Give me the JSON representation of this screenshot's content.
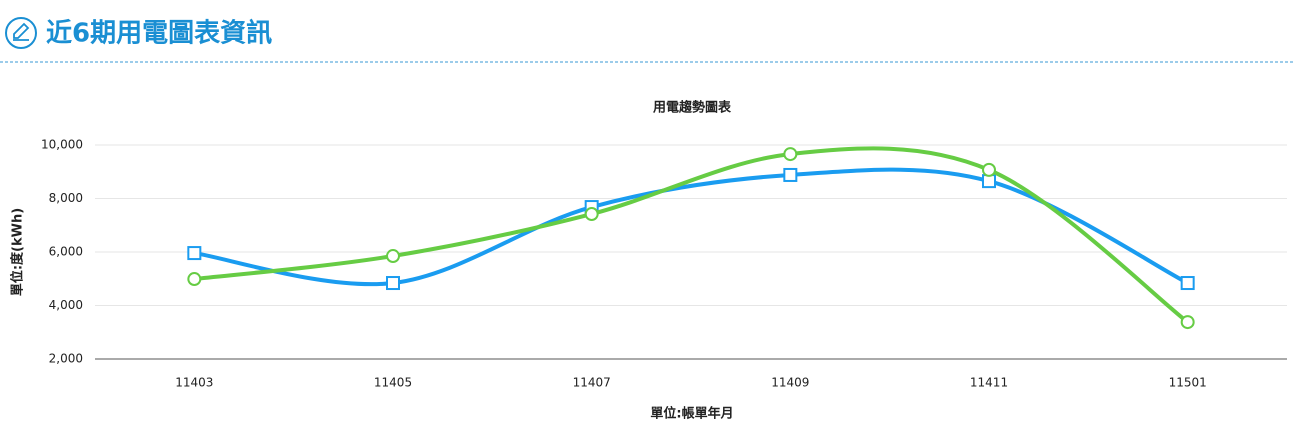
{
  "header": {
    "title": "近6期用電圖表資訊"
  },
  "chart_data": {
    "type": "line",
    "title": "用電趨勢圖表",
    "y_label": "單位:度(kWh)",
    "x_label": "單位:帳單年月",
    "categories": [
      "11403",
      "11405",
      "11407",
      "11409",
      "11411",
      "11501"
    ],
    "series": [
      {
        "color": "#1a9cf0",
        "marker": "square",
        "values": [
          5960,
          4840,
          7680,
          8880,
          8650,
          4840
        ]
      },
      {
        "color": "#66cc44",
        "marker": "circle",
        "values": [
          4990,
          5850,
          7420,
          9660,
          9070,
          3380
        ]
      }
    ],
    "ylim": [
      2000,
      10000
    ],
    "yticks": [
      {
        "value": 2000,
        "label": "2,000"
      },
      {
        "value": 4000,
        "label": "4,000"
      },
      {
        "value": 6000,
        "label": "6,000"
      },
      {
        "value": 8000,
        "label": "8,000"
      },
      {
        "value": 10000,
        "label": "10,000"
      }
    ],
    "grid": true
  }
}
